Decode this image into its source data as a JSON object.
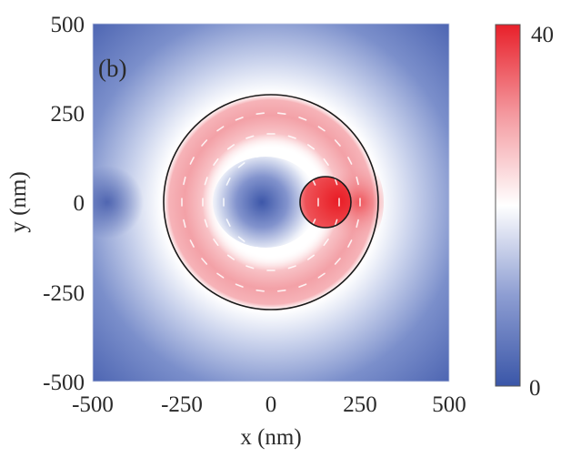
{
  "chart_data": {
    "type": "heatmap",
    "panel_label": "(b)",
    "xlabel": "x (nm)",
    "ylabel": "y (nm)",
    "xlim": [
      -500,
      500
    ],
    "ylim": [
      -500,
      500
    ],
    "xticks": [
      -500,
      -250,
      0,
      250,
      500
    ],
    "yticks": [
      -500,
      -250,
      0,
      250,
      500
    ],
    "xtick_labels": [
      "-500",
      "-250",
      "0",
      "250",
      "500"
    ],
    "ytick_labels": [
      "500",
      "250",
      "0",
      "-250",
      "-500"
    ],
    "colorbar": {
      "min": 0,
      "max": 40,
      "min_label": "0",
      "max_label": "40",
      "colormap": [
        "#3a56a8",
        "#ffffff",
        "#e8202a"
      ]
    },
    "overlays": {
      "outer_circle": {
        "cx": 0,
        "cy": 0,
        "r": 300
      },
      "inner_circle": {
        "cx": 150,
        "cy": 0,
        "r": 72
      },
      "vector_field": "white arrows showing circulating flow around ring"
    },
    "features": [
      {
        "name": "ring",
        "description": "red annular high-intensity band between r~130 and r~300 nm",
        "approx_value": 25
      },
      {
        "name": "hotspot",
        "cx": 150,
        "cy": 0,
        "r": 72,
        "approx_value": 40
      },
      {
        "name": "core",
        "cx": -20,
        "cy": 0,
        "description": "blue low-intensity center",
        "approx_value": 5
      },
      {
        "name": "background",
        "description": "blue low field outside ring",
        "approx_value": 2
      }
    ],
    "grid": false,
    "legend_position": "colorbar right"
  }
}
